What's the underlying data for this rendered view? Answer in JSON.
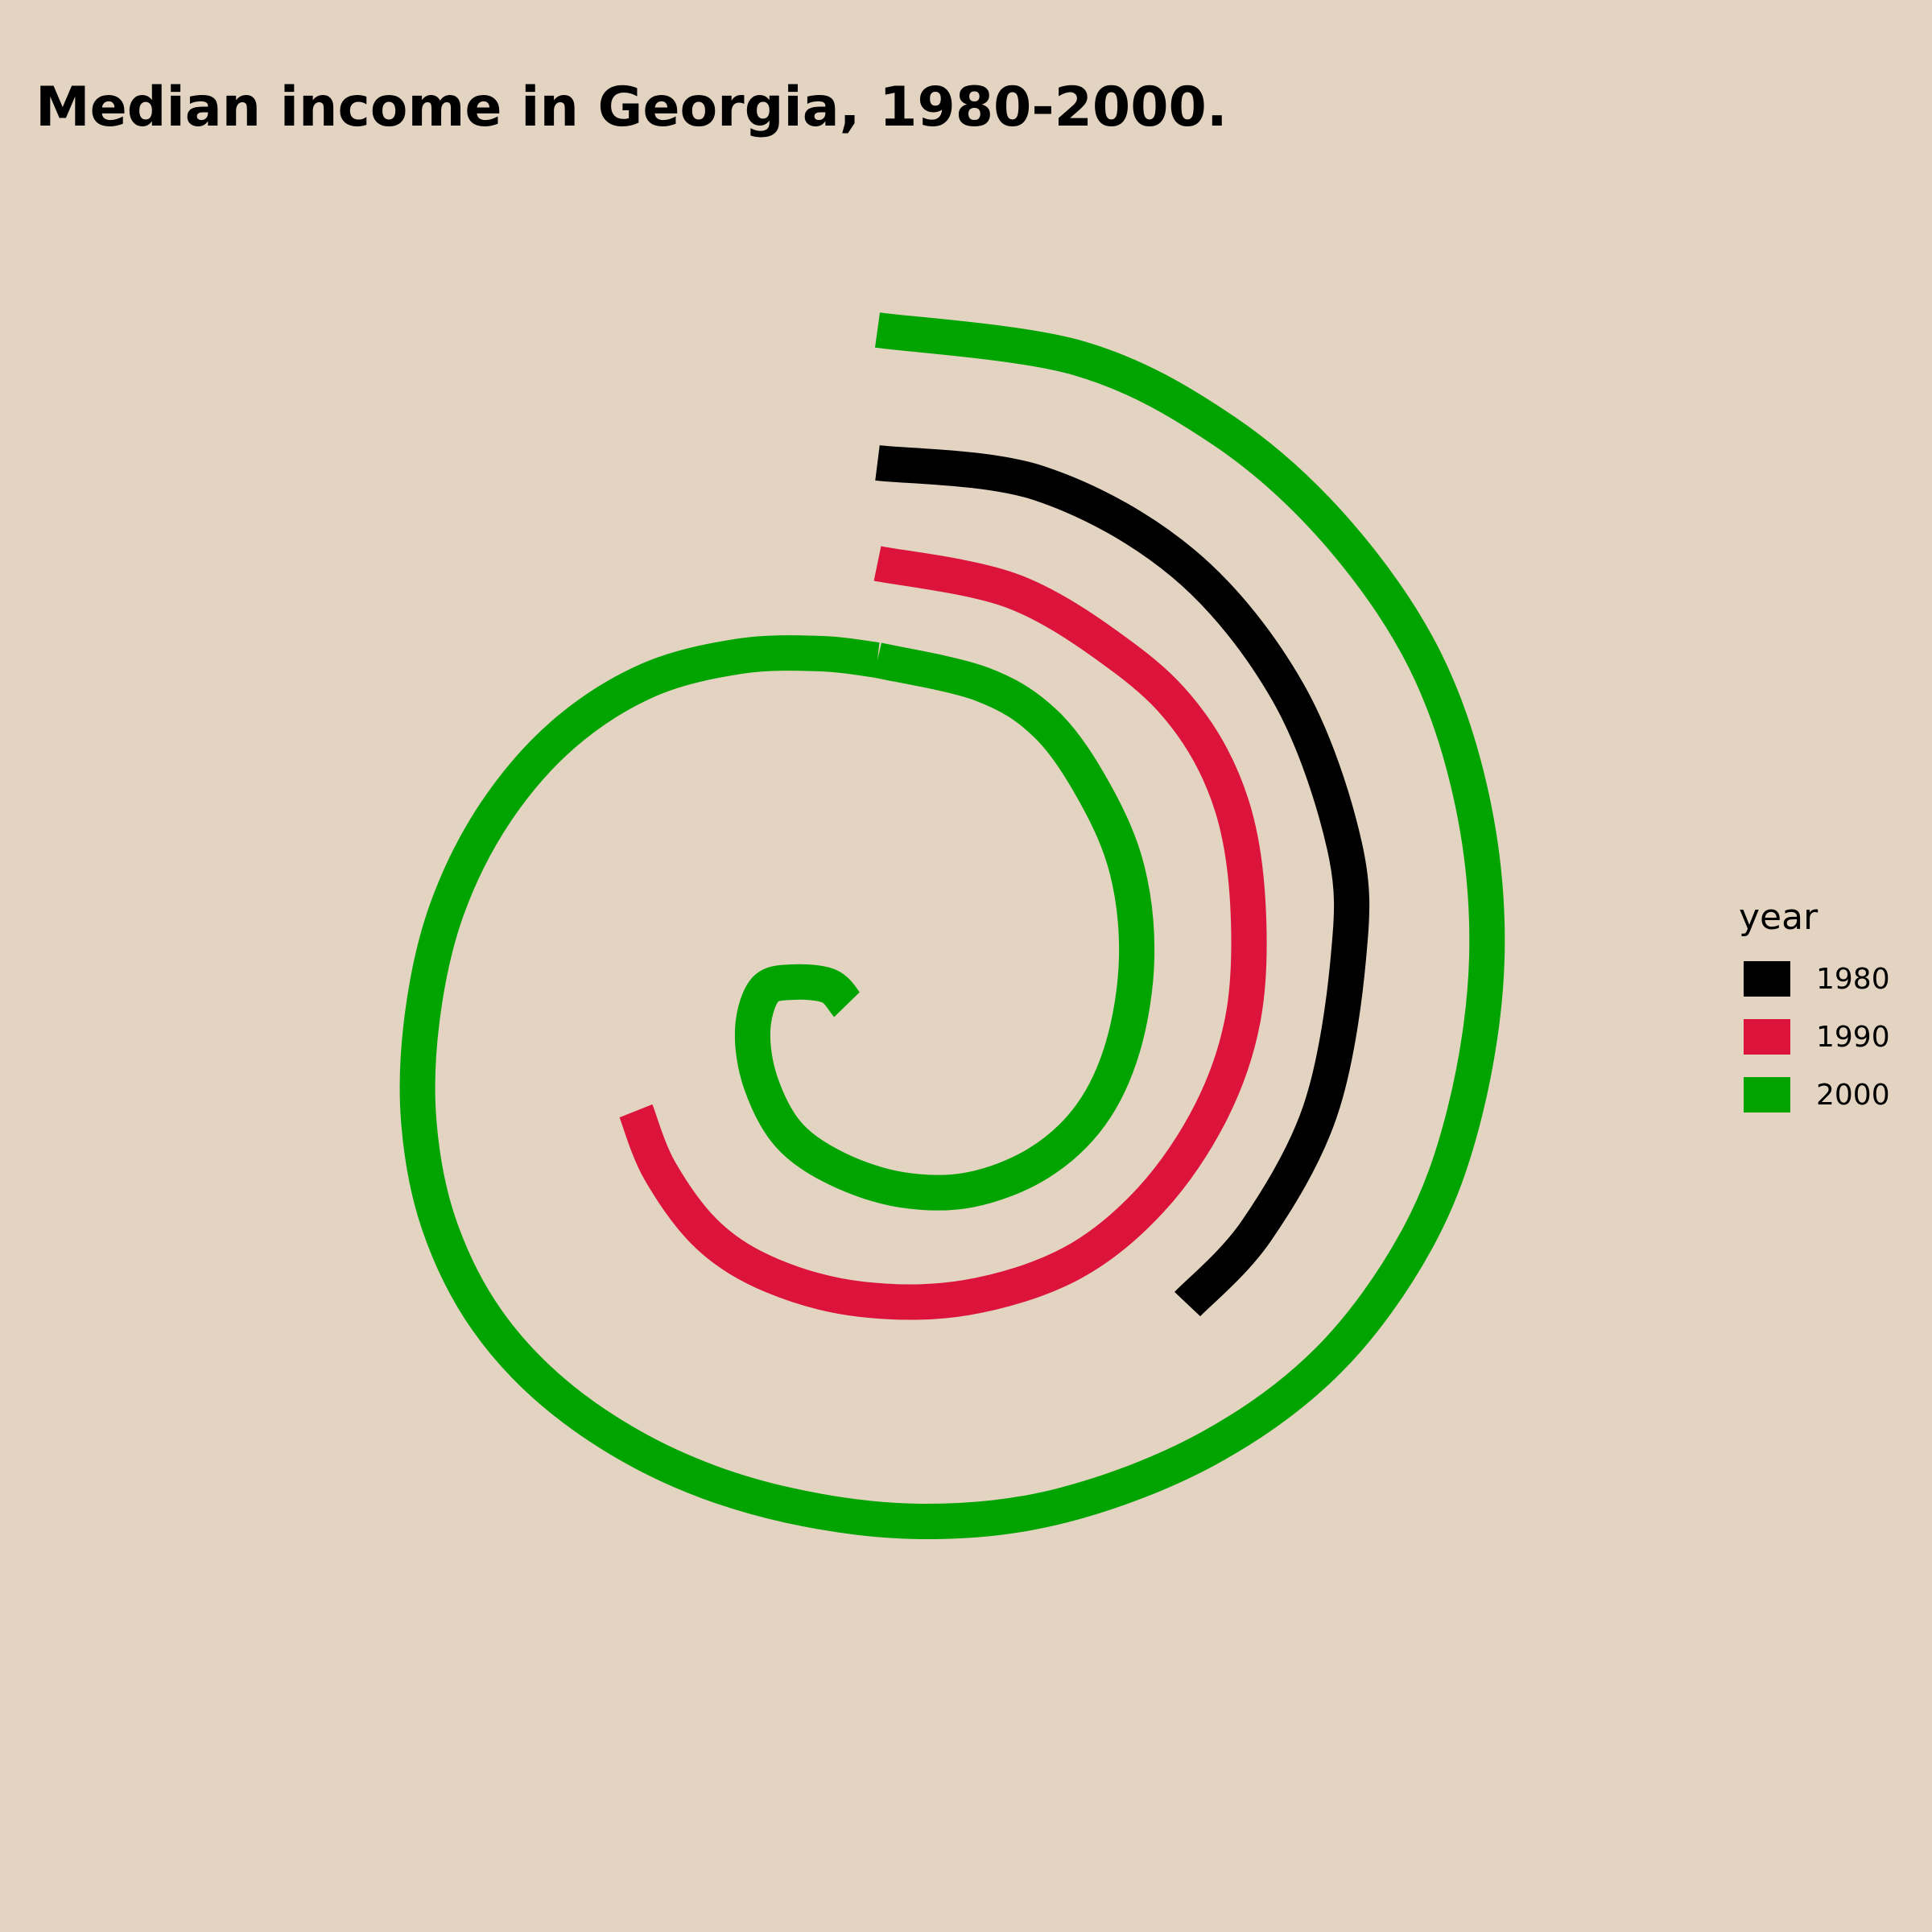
{
  "chart_data": {
    "type": "line",
    "coordinate_system": "polar-spiral",
    "title": "Median income in Georgia, 1980-2000.",
    "legend_title": "year",
    "legend_position": "right",
    "grid": false,
    "series": [
      {
        "name": "1980",
        "color": "#000000",
        "revolutions": [
          0.53
        ],
        "radius_end": 1.0
      },
      {
        "name": "1990",
        "color": "#dc143c",
        "revolutions": [
          0.6
        ],
        "radius_end": 0.83
      },
      {
        "name": "2000",
        "color": "#00a400",
        "revolutions": [
          1.0,
          1.0
        ],
        "radius_end": 1.22
      }
    ]
  }
}
